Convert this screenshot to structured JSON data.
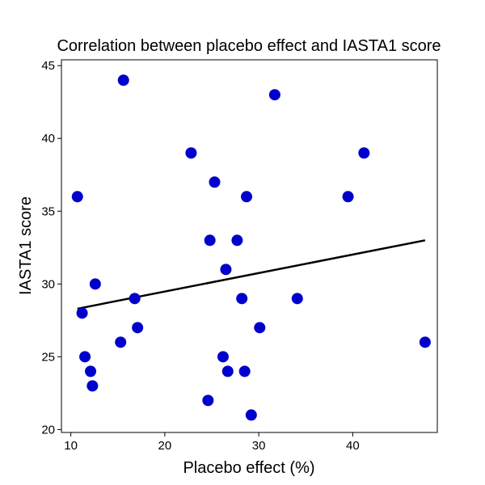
{
  "chart_data": {
    "type": "scatter",
    "title": "Correlation between placebo effect and IASTA1 score",
    "xlabel": "Placebo effect (%)",
    "ylabel": "IASTA1 score",
    "xlim": [
      9,
      49
    ],
    "ylim": [
      19.8,
      45.4
    ],
    "xticks": [
      10,
      20,
      30,
      40
    ],
    "yticks": [
      20,
      25,
      30,
      35,
      40,
      45
    ],
    "grid": false,
    "legend": "none",
    "marker_color": "#0000cc",
    "line_color": "#000000",
    "points": [
      {
        "x": 10.7,
        "y": 36
      },
      {
        "x": 11.2,
        "y": 28
      },
      {
        "x": 11.5,
        "y": 25
      },
      {
        "x": 12.1,
        "y": 24
      },
      {
        "x": 12.3,
        "y": 23
      },
      {
        "x": 12.6,
        "y": 30
      },
      {
        "x": 15.3,
        "y": 26
      },
      {
        "x": 15.6,
        "y": 44
      },
      {
        "x": 16.8,
        "y": 29
      },
      {
        "x": 17.1,
        "y": 27
      },
      {
        "x": 22.8,
        "y": 39
      },
      {
        "x": 24.6,
        "y": 22
      },
      {
        "x": 24.8,
        "y": 33
      },
      {
        "x": 25.3,
        "y": 37
      },
      {
        "x": 26.2,
        "y": 25
      },
      {
        "x": 26.5,
        "y": 31
      },
      {
        "x": 26.7,
        "y": 24
      },
      {
        "x": 27.7,
        "y": 33
      },
      {
        "x": 28.2,
        "y": 29
      },
      {
        "x": 28.5,
        "y": 24
      },
      {
        "x": 28.7,
        "y": 36
      },
      {
        "x": 29.2,
        "y": 21
      },
      {
        "x": 30.1,
        "y": 27
      },
      {
        "x": 31.7,
        "y": 43
      },
      {
        "x": 34.1,
        "y": 29
      },
      {
        "x": 39.5,
        "y": 36
      },
      {
        "x": 41.2,
        "y": 39
      },
      {
        "x": 47.7,
        "y": 26
      }
    ],
    "trendline": {
      "x": [
        10.7,
        47.7
      ],
      "y": [
        28.3,
        33.0
      ]
    }
  }
}
